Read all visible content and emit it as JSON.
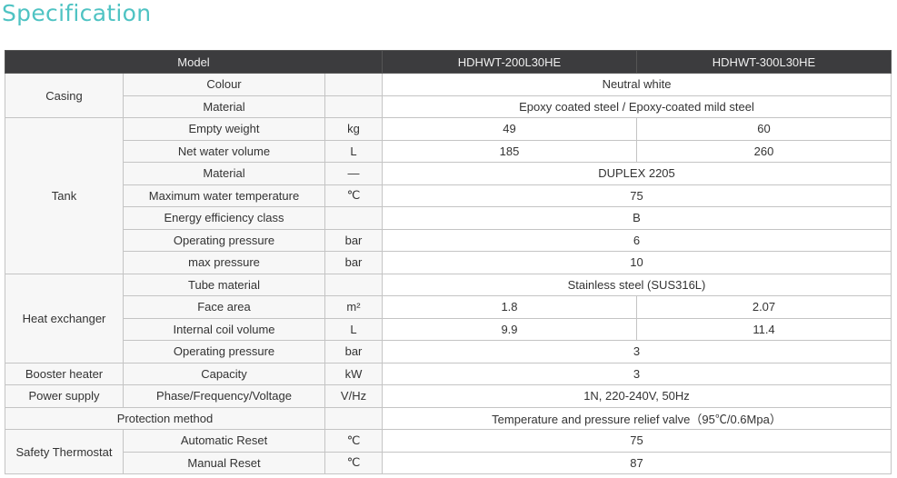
{
  "title": "Specification",
  "header": {
    "label": "Model",
    "models": [
      "HDHWT-200L30HE",
      "HDHWT-300L30HE"
    ]
  },
  "groups": [
    {
      "name": "Casing",
      "rows": [
        {
          "item": "Colour",
          "unit": "",
          "values": [
            "Neutral white"
          ]
        },
        {
          "item": "Material",
          "unit": "",
          "values": [
            "Epoxy coated steel / Epoxy-coated mild steel"
          ]
        }
      ]
    },
    {
      "name": "Tank",
      "rows": [
        {
          "item": "Empty weight",
          "unit": "kg",
          "values": [
            "49",
            "60"
          ]
        },
        {
          "item": "Net water volume",
          "unit": "L",
          "values": [
            "185",
            "260"
          ]
        },
        {
          "item": "Material",
          "unit": "—",
          "values": [
            "DUPLEX 2205"
          ]
        },
        {
          "item": "Maximum water temperature",
          "unit": "℃",
          "values": [
            "75"
          ]
        },
        {
          "item": "Energy efficiency class",
          "unit": "",
          "values": [
            "B"
          ]
        },
        {
          "item": "Operating pressure",
          "unit": "bar",
          "values": [
            "6"
          ]
        },
        {
          "item": "max pressure",
          "unit": "bar",
          "values": [
            "10"
          ]
        }
      ]
    },
    {
      "name": "Heat exchanger",
      "rows": [
        {
          "item": "Tube material",
          "unit": "",
          "values": [
            "Stainless steel (SUS316L)"
          ]
        },
        {
          "item": "Face area",
          "unit": "m²",
          "values": [
            "1.8",
            "2.07"
          ]
        },
        {
          "item": "Internal coil volume",
          "unit": "L",
          "values": [
            "9.9",
            "11.4"
          ]
        },
        {
          "item": "Operating pressure",
          "unit": "bar",
          "values": [
            "3"
          ]
        }
      ]
    },
    {
      "name": "Booster heater",
      "rows": [
        {
          "item": "Capacity",
          "unit": "kW",
          "values": [
            "3"
          ]
        }
      ]
    },
    {
      "name": "Power supply",
      "rows": [
        {
          "item": "Phase/Frequency/Voltage",
          "unit": "V/Hz",
          "values": [
            "1N, 220-240V, 50Hz"
          ]
        }
      ]
    },
    {
      "name": "Protection method",
      "merged": true,
      "rows": [
        {
          "item": "",
          "unit": "",
          "values": [
            "Temperature and pressure relief valve（95℃/0.6Mpa）"
          ]
        }
      ]
    },
    {
      "name": "Safety Thermostat",
      "rows": [
        {
          "item": "Automatic Reset",
          "unit": "℃",
          "values": [
            "75"
          ]
        },
        {
          "item": "Manual Reset",
          "unit": "℃",
          "values": [
            "87"
          ]
        }
      ]
    }
  ]
}
